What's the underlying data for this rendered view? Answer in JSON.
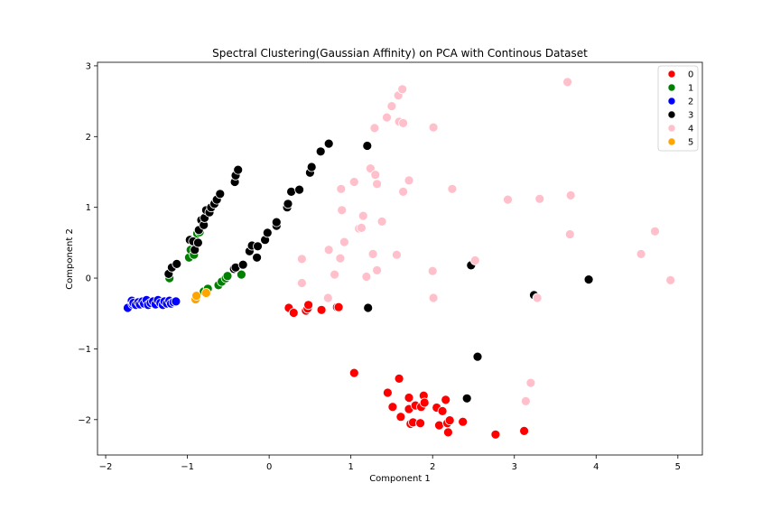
{
  "chart_data": {
    "type": "scatter",
    "title": "Spectral Clustering(Gaussian Affinity) on PCA with Continous Dataset",
    "xlabel": "Component 1",
    "ylabel": "Component 2",
    "xlim": [
      -2.1,
      5.3
    ],
    "ylim": [
      -2.5,
      3.05
    ],
    "xticks": [
      "−2",
      "−1",
      "0",
      "1",
      "2",
      "3",
      "4",
      "5"
    ],
    "yticks": [
      "−2",
      "−1",
      "0",
      "1",
      "2",
      "3"
    ],
    "grid": false,
    "legend_position": "top-right",
    "series": [
      {
        "name": "0",
        "color": "#ff0000",
        "points": [
          [
            0.24,
            -0.42
          ],
          [
            0.3,
            -0.49
          ],
          [
            0.45,
            -0.46
          ],
          [
            0.47,
            -0.43
          ],
          [
            0.48,
            -0.38
          ],
          [
            0.64,
            -0.45
          ],
          [
            0.83,
            -0.41
          ],
          [
            0.85,
            -0.41
          ],
          [
            1.04,
            -1.34
          ],
          [
            1.45,
            -1.62
          ],
          [
            1.51,
            -1.82
          ],
          [
            1.59,
            -1.42
          ],
          [
            1.61,
            -1.96
          ],
          [
            1.71,
            -1.69
          ],
          [
            1.71,
            -1.85
          ],
          [
            1.73,
            -2.06
          ],
          [
            1.76,
            -2.04
          ],
          [
            1.79,
            -1.8
          ],
          [
            1.85,
            -2.05
          ],
          [
            1.86,
            -1.82
          ],
          [
            1.89,
            -1.66
          ],
          [
            1.9,
            -1.76
          ],
          [
            2.05,
            -1.83
          ],
          [
            2.08,
            -2.08
          ],
          [
            2.12,
            -1.88
          ],
          [
            2.16,
            -1.72
          ],
          [
            2.18,
            -2.05
          ],
          [
            2.19,
            -2.18
          ],
          [
            2.21,
            -2.01
          ],
          [
            2.37,
            -2.03
          ],
          [
            2.77,
            -2.21
          ],
          [
            3.12,
            -2.16
          ]
        ]
      },
      {
        "name": "1",
        "color": "#008000",
        "points": [
          [
            -1.22,
            0.0
          ],
          [
            -0.98,
            0.29
          ],
          [
            -0.96,
            0.4
          ],
          [
            -0.92,
            0.33
          ],
          [
            -0.9,
            0.48
          ],
          [
            -0.88,
            0.63
          ],
          [
            -0.85,
            0.65
          ],
          [
            -0.8,
            -0.19
          ],
          [
            -0.75,
            -0.15
          ],
          [
            -0.62,
            -0.1
          ],
          [
            -0.58,
            -0.05
          ],
          [
            -0.53,
            0.0
          ],
          [
            -0.51,
            0.03
          ],
          [
            -0.34,
            0.05
          ]
        ]
      },
      {
        "name": "2",
        "color": "#0000ff",
        "points": [
          [
            -1.73,
            -0.42
          ],
          [
            -1.68,
            -0.32
          ],
          [
            -1.67,
            -0.37
          ],
          [
            -1.66,
            -0.35
          ],
          [
            -1.63,
            -0.38
          ],
          [
            -1.6,
            -0.34
          ],
          [
            -1.58,
            -0.37
          ],
          [
            -1.55,
            -0.33
          ],
          [
            -1.53,
            -0.36
          ],
          [
            -1.5,
            -0.31
          ],
          [
            -1.48,
            -0.38
          ],
          [
            -1.45,
            -0.35
          ],
          [
            -1.42,
            -0.33
          ],
          [
            -1.39,
            -0.37
          ],
          [
            -1.36,
            -0.31
          ],
          [
            -1.33,
            -0.35
          ],
          [
            -1.3,
            -0.38
          ],
          [
            -1.28,
            -0.33
          ],
          [
            -1.25,
            -0.36
          ],
          [
            -1.22,
            -0.32
          ],
          [
            -1.2,
            -0.36
          ],
          [
            -1.17,
            -0.34
          ],
          [
            -1.14,
            -0.33
          ]
        ]
      },
      {
        "name": "3",
        "color": "#000000",
        "points": [
          [
            -1.23,
            0.06
          ],
          [
            -1.19,
            0.15
          ],
          [
            -1.13,
            0.2
          ],
          [
            -0.97,
            0.54
          ],
          [
            -0.93,
            0.52
          ],
          [
            -0.91,
            0.4
          ],
          [
            -0.87,
            0.5
          ],
          [
            -0.86,
            0.68
          ],
          [
            -0.83,
            0.82
          ],
          [
            -0.8,
            0.75
          ],
          [
            -0.79,
            0.85
          ],
          [
            -0.77,
            0.96
          ],
          [
            -0.73,
            0.93
          ],
          [
            -0.71,
            1.0
          ],
          [
            -0.67,
            1.05
          ],
          [
            -0.64,
            1.11
          ],
          [
            -0.6,
            1.19
          ],
          [
            -0.43,
            0.13
          ],
          [
            -0.41,
            0.15
          ],
          [
            -0.42,
            1.36
          ],
          [
            -0.41,
            1.45
          ],
          [
            -0.38,
            1.53
          ],
          [
            -0.32,
            0.19
          ],
          [
            -0.24,
            0.38
          ],
          [
            -0.21,
            0.46
          ],
          [
            -0.15,
            0.29
          ],
          [
            -0.14,
            0.45
          ],
          [
            -0.05,
            0.54
          ],
          [
            -0.02,
            0.64
          ],
          [
            0.09,
            0.74
          ],
          [
            0.09,
            0.79
          ],
          [
            0.22,
            1.0
          ],
          [
            0.23,
            1.05
          ],
          [
            0.27,
            1.22
          ],
          [
            0.37,
            1.25
          ],
          [
            0.5,
            1.49
          ],
          [
            0.52,
            1.57
          ],
          [
            0.63,
            1.79
          ],
          [
            0.73,
            1.9
          ],
          [
            1.2,
            1.87
          ],
          [
            1.21,
            -0.42
          ],
          [
            2.47,
            0.18
          ],
          [
            2.55,
            -1.11
          ],
          [
            2.42,
            -1.7
          ],
          [
            3.24,
            -0.24
          ],
          [
            3.91,
            -0.02
          ]
        ]
      },
      {
        "name": "4",
        "color": "#ffc0cb",
        "points": [
          [
            0.4,
            0.27
          ],
          [
            0.4,
            -0.07
          ],
          [
            0.73,
            0.4
          ],
          [
            0.72,
            -0.28
          ],
          [
            0.8,
            0.05
          ],
          [
            0.87,
            0.28
          ],
          [
            0.88,
            1.26
          ],
          [
            0.89,
            0.96
          ],
          [
            0.92,
            0.51
          ],
          [
            1.04,
            1.36
          ],
          [
            1.1,
            0.7
          ],
          [
            1.15,
            0.88
          ],
          [
            1.13,
            0.71
          ],
          [
            1.19,
            0.02
          ],
          [
            1.24,
            1.55
          ],
          [
            1.27,
            0.34
          ],
          [
            1.29,
            2.12
          ],
          [
            1.3,
            1.46
          ],
          [
            1.32,
            1.33
          ],
          [
            1.32,
            0.11
          ],
          [
            1.38,
            0.8
          ],
          [
            1.44,
            2.27
          ],
          [
            1.5,
            2.43
          ],
          [
            1.56,
            0.33
          ],
          [
            1.58,
            2.58
          ],
          [
            1.59,
            2.21
          ],
          [
            1.63,
            2.67
          ],
          [
            1.64,
            2.19
          ],
          [
            1.64,
            1.22
          ],
          [
            1.71,
            1.38
          ],
          [
            2.0,
            0.1
          ],
          [
            2.01,
            -0.28
          ],
          [
            2.01,
            2.13
          ],
          [
            2.24,
            1.26
          ],
          [
            2.52,
            0.25
          ],
          [
            2.92,
            1.11
          ],
          [
            3.14,
            -1.74
          ],
          [
            3.2,
            -1.48
          ],
          [
            3.31,
            1.12
          ],
          [
            3.65,
            2.77
          ],
          [
            3.68,
            0.62
          ],
          [
            3.69,
            1.17
          ],
          [
            4.55,
            0.34
          ],
          [
            4.72,
            0.66
          ],
          [
            4.91,
            -0.03
          ],
          [
            3.28,
            -0.28
          ]
        ]
      },
      {
        "name": "5",
        "color": "#ffa500",
        "points": [
          [
            -0.9,
            -0.3
          ],
          [
            -0.89,
            -0.25
          ],
          [
            -0.77,
            -0.21
          ]
        ]
      }
    ]
  }
}
